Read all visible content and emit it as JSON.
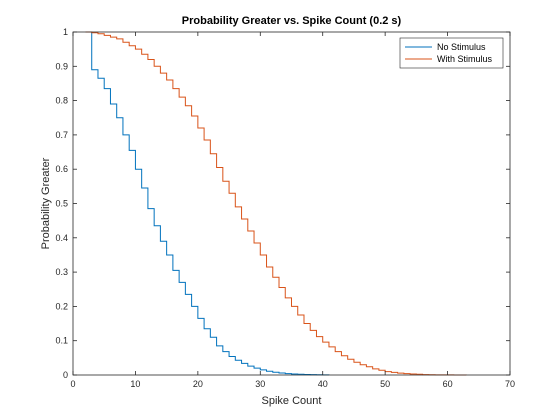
{
  "chart_data": {
    "type": "line",
    "step": true,
    "title": "Probability Greater vs. Spike Count (0.2 s)",
    "xlabel": "Spike Count",
    "ylabel": "Probability Greater",
    "xlim": [
      0,
      70
    ],
    "ylim": [
      0,
      1
    ],
    "xticks": [
      "0",
      "10",
      "20",
      "30",
      "40",
      "50",
      "60",
      "70"
    ],
    "yticks": [
      "0",
      "0.1",
      "0.2",
      "0.3",
      "0.4",
      "0.5",
      "0.6",
      "0.7",
      "0.8",
      "0.9",
      "1"
    ],
    "xtick_values": [
      0,
      10,
      20,
      30,
      40,
      50,
      60,
      70
    ],
    "ytick_values": [
      0,
      0.1,
      0.2,
      0.3,
      0.4,
      0.5,
      0.6,
      0.7,
      0.8,
      0.9,
      1
    ],
    "grid": false,
    "legend_position": "top-right",
    "series": [
      {
        "name": "No Stimulus",
        "color": "#0072BD",
        "x": [
          2,
          3,
          4,
          5,
          6,
          7,
          8,
          9,
          10,
          11,
          12,
          13,
          14,
          15,
          16,
          17,
          18,
          19,
          20,
          21,
          22,
          23,
          24,
          25,
          26,
          27,
          28,
          29,
          30,
          31,
          32,
          33,
          34,
          35,
          36,
          37,
          38,
          39,
          40,
          41
        ],
        "y": [
          1.0,
          0.89,
          0.865,
          0.835,
          0.79,
          0.75,
          0.7,
          0.655,
          0.6,
          0.545,
          0.485,
          0.435,
          0.39,
          0.35,
          0.305,
          0.27,
          0.235,
          0.2,
          0.165,
          0.135,
          0.11,
          0.085,
          0.068,
          0.054,
          0.043,
          0.034,
          0.026,
          0.02,
          0.015,
          0.011,
          0.008,
          0.006,
          0.004,
          0.003,
          0.002,
          0.0015,
          0.001,
          0.0007,
          0.0004,
          0.0
        ]
      },
      {
        "name": "With Stimulus",
        "color": "#D95319",
        "x": [
          2,
          3,
          4,
          5,
          6,
          7,
          8,
          9,
          10,
          11,
          12,
          13,
          14,
          15,
          16,
          17,
          18,
          19,
          20,
          21,
          22,
          23,
          24,
          25,
          26,
          27,
          28,
          29,
          30,
          31,
          32,
          33,
          34,
          35,
          36,
          37,
          38,
          39,
          40,
          41,
          42,
          43,
          44,
          45,
          46,
          47,
          48,
          49,
          50,
          51,
          52,
          53,
          54,
          55,
          56,
          57,
          58,
          59,
          60,
          61,
          62,
          63
        ],
        "y": [
          1.0,
          0.998,
          0.995,
          0.99,
          0.985,
          0.98,
          0.97,
          0.96,
          0.95,
          0.935,
          0.92,
          0.9,
          0.88,
          0.86,
          0.835,
          0.81,
          0.785,
          0.755,
          0.72,
          0.685,
          0.645,
          0.605,
          0.565,
          0.53,
          0.49,
          0.455,
          0.42,
          0.385,
          0.35,
          0.315,
          0.285,
          0.255,
          0.225,
          0.2,
          0.175,
          0.15,
          0.13,
          0.112,
          0.096,
          0.082,
          0.068,
          0.056,
          0.046,
          0.037,
          0.03,
          0.024,
          0.018,
          0.014,
          0.01,
          0.0075,
          0.0055,
          0.004,
          0.003,
          0.002,
          0.0012,
          0.0008,
          0.0005,
          0.0003,
          0.0002,
          0.0001,
          5e-05,
          0.0
        ]
      }
    ]
  }
}
